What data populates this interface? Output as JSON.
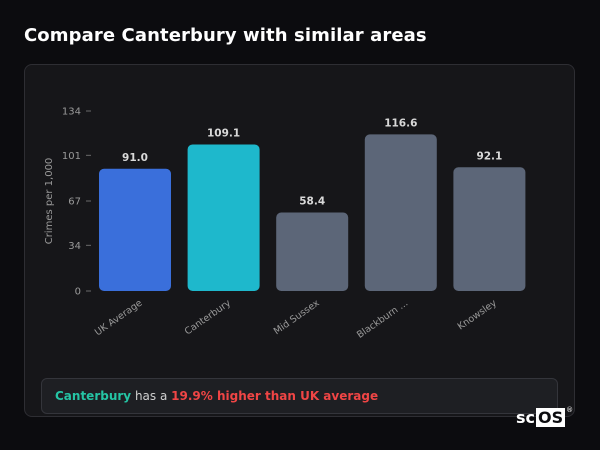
{
  "page": {
    "title": "Compare Canterbury with similar areas"
  },
  "summary": {
    "area": "Canterbury",
    "text_mid": " has a ",
    "highlight": "19.9% higher than UK average"
  },
  "logo": {
    "text_left": "sc",
    "text_boxed": "OS",
    "reg_mark": "®"
  },
  "colors": {
    "uk_average": "#3a6fdb",
    "focus_area": "#1eb8cc",
    "comparison": "#5c6678",
    "axis_text": "#9a9a9a",
    "value_label": "#d9d9d9"
  },
  "chart_data": {
    "type": "bar",
    "ylabel": "Crimes per 1,000",
    "xlabel": "",
    "ylim": [
      0,
      134
    ],
    "yticks": [
      0,
      34,
      67,
      101,
      134
    ],
    "categories": [
      "UK Average",
      "Canterbury",
      "Mid Sussex",
      "Blackburn ...",
      "Knowsley"
    ],
    "values": [
      91.0,
      109.1,
      58.4,
      116.6,
      92.1
    ],
    "value_labels": [
      "91.0",
      "109.1",
      "58.4",
      "116.6",
      "92.1"
    ],
    "bar_roles": [
      "uk_average",
      "focus_area",
      "comparison",
      "comparison",
      "comparison"
    ],
    "grid": false,
    "legend": "none"
  }
}
